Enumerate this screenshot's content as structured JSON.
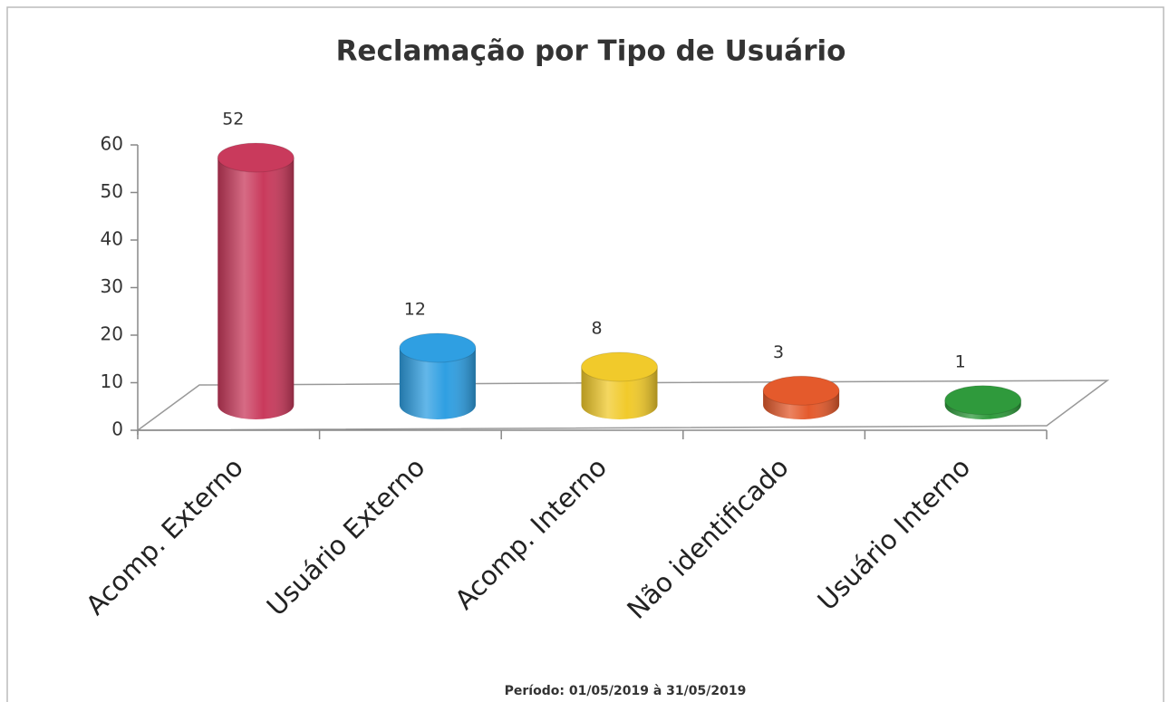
{
  "chart_data": {
    "type": "bar3d",
    "title": "Reclamação por Tipo de Usuário",
    "categories": [
      "Acomp. Externo",
      "Usuário Externo",
      "Acomp. Interno",
      "Não identificado",
      "Usuário Interno"
    ],
    "values": [
      52,
      12,
      8,
      3,
      1
    ],
    "colors": [
      "#c93a5c",
      "#2f9fe2",
      "#f1ca2b",
      "#e45a2c",
      "#2f9a3c"
    ],
    "ylim": [
      0,
      60
    ],
    "yticks": [
      0,
      10,
      20,
      30,
      40,
      50,
      60
    ],
    "footnote": "Período: 01/05/2019 à 31/05/2019"
  }
}
